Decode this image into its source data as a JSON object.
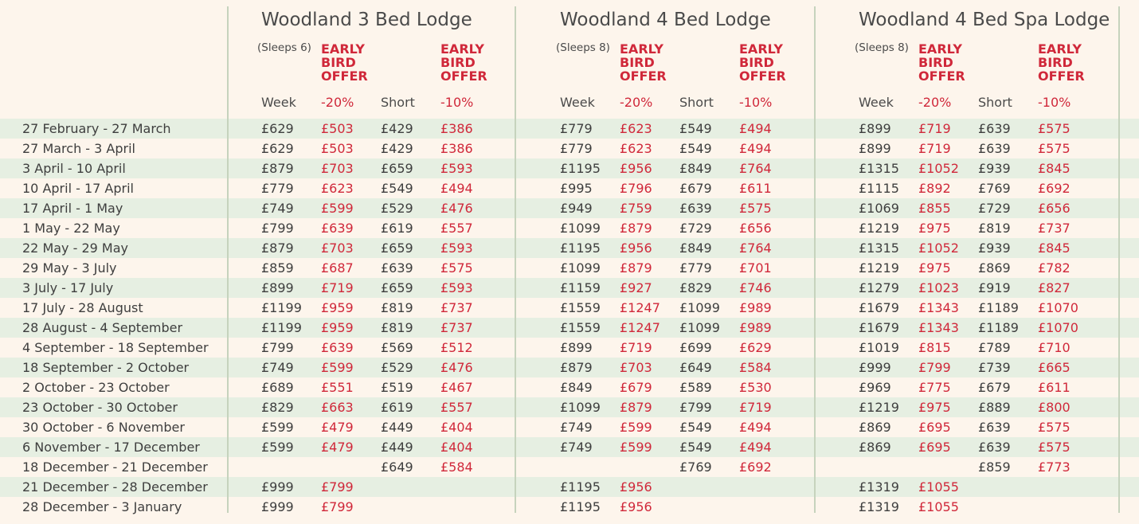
{
  "colors": {
    "background": "#fdf5ec",
    "stripe": "#e6efe2",
    "accent_red": "#d0283a",
    "divider": "#c6d3bd",
    "text": "#3e3e3e"
  },
  "lodges": [
    {
      "title": "Woodland 3 Bed Lodge",
      "sleeps": "(Sleeps 6)",
      "offer1": "EARLY\nBIRD\nOFFER",
      "offer2": "EARLY\nBIRD\nOFFER"
    },
    {
      "title": "Woodland 4 Bed Lodge",
      "sleeps": "(Sleeps 8)",
      "offer1": "EARLY\nBIRD\nOFFER",
      "offer2": "EARLY\nBIRD\nOFFER"
    },
    {
      "title": "Woodland 4 Bed Spa Lodge",
      "sleeps": "(Sleeps 8)",
      "offer1": "EARLY\nBIRD\nOFFER",
      "offer2": "EARLY\nBIRD\nOFFER"
    }
  ],
  "column_headers": [
    "Week",
    "-20%",
    "Short",
    "-10%"
  ],
  "rows": [
    {
      "date": "27 February - 27 March",
      "prices": [
        [
          "£629",
          "£503",
          "£429",
          "£386"
        ],
        [
          "£779",
          "£623",
          "£549",
          "£494"
        ],
        [
          "£899",
          "£719",
          "£639",
          "£575"
        ]
      ]
    },
    {
      "date": "27 March - 3 April",
      "prices": [
        [
          "£629",
          "£503",
          "£429",
          "£386"
        ],
        [
          "£779",
          "£623",
          "£549",
          "£494"
        ],
        [
          "£899",
          "£719",
          "£639",
          "£575"
        ]
      ]
    },
    {
      "date": "3 April - 10 April",
      "prices": [
        [
          "£879",
          "£703",
          "£659",
          "£593"
        ],
        [
          "£1195",
          "£956",
          "£849",
          "£764"
        ],
        [
          "£1315",
          "£1052",
          "£939",
          "£845"
        ]
      ]
    },
    {
      "date": "10 April - 17 April",
      "prices": [
        [
          "£779",
          "£623",
          "£549",
          "£494"
        ],
        [
          "£995",
          "£796",
          "£679",
          "£611"
        ],
        [
          "£1115",
          "£892",
          "£769",
          "£692"
        ]
      ]
    },
    {
      "date": "17 April - 1 May",
      "prices": [
        [
          "£749",
          "£599",
          "£529",
          "£476"
        ],
        [
          "£949",
          "£759",
          "£639",
          "£575"
        ],
        [
          "£1069",
          "£855",
          "£729",
          "£656"
        ]
      ]
    },
    {
      "date": "1 May - 22 May",
      "prices": [
        [
          "£799",
          "£639",
          "£619",
          "£557"
        ],
        [
          "£1099",
          "£879",
          "£729",
          "£656"
        ],
        [
          "£1219",
          "£975",
          "£819",
          "£737"
        ]
      ]
    },
    {
      "date": "22 May - 29 May",
      "prices": [
        [
          "£879",
          "£703",
          "£659",
          "£593"
        ],
        [
          "£1195",
          "£956",
          "£849",
          "£764"
        ],
        [
          "£1315",
          "£1052",
          "£939",
          "£845"
        ]
      ]
    },
    {
      "date": "29 May - 3 July",
      "prices": [
        [
          "£859",
          "£687",
          "£639",
          "£575"
        ],
        [
          "£1099",
          "£879",
          "£779",
          "£701"
        ],
        [
          "£1219",
          "£975",
          "£869",
          "£782"
        ]
      ]
    },
    {
      "date": "3 July - 17 July",
      "prices": [
        [
          "£899",
          "£719",
          "£659",
          "£593"
        ],
        [
          "£1159",
          "£927",
          "£829",
          "£746"
        ],
        [
          "£1279",
          "£1023",
          "£919",
          "£827"
        ]
      ]
    },
    {
      "date": "17 July - 28 August",
      "prices": [
        [
          "£1199",
          "£959",
          "£819",
          "£737"
        ],
        [
          "£1559",
          "£1247",
          "£1099",
          "£989"
        ],
        [
          "£1679",
          "£1343",
          "£1189",
          "£1070"
        ]
      ]
    },
    {
      "date": "28 August - 4 September",
      "prices": [
        [
          "£1199",
          "£959",
          "£819",
          "£737"
        ],
        [
          "£1559",
          "£1247",
          "£1099",
          "£989"
        ],
        [
          "£1679",
          "£1343",
          "£1189",
          "£1070"
        ]
      ]
    },
    {
      "date": "4 September - 18 September",
      "prices": [
        [
          "£799",
          "£639",
          "£569",
          "£512"
        ],
        [
          "£899",
          "£719",
          "£699",
          "£629"
        ],
        [
          "£1019",
          "£815",
          "£789",
          "£710"
        ]
      ]
    },
    {
      "date": "18 September - 2 October",
      "prices": [
        [
          "£749",
          "£599",
          "£529",
          "£476"
        ],
        [
          "£879",
          "£703",
          "£649",
          "£584"
        ],
        [
          "£999",
          "£799",
          "£739",
          "£665"
        ]
      ]
    },
    {
      "date": "2 October - 23 October",
      "prices": [
        [
          "£689",
          "£551",
          "£519",
          "£467"
        ],
        [
          "£849",
          "£679",
          "£589",
          "£530"
        ],
        [
          "£969",
          "£775",
          "£679",
          "£611"
        ]
      ]
    },
    {
      "date": "23 October - 30 October",
      "prices": [
        [
          "£829",
          "£663",
          "£619",
          "£557"
        ],
        [
          "£1099",
          "£879",
          "£799",
          "£719"
        ],
        [
          "£1219",
          "£975",
          "£889",
          "£800"
        ]
      ]
    },
    {
      "date": "30 October - 6 November",
      "prices": [
        [
          "£599",
          "£479",
          "£449",
          "£404"
        ],
        [
          "£749",
          "£599",
          "£549",
          "£494"
        ],
        [
          "£869",
          "£695",
          "£639",
          "£575"
        ]
      ]
    },
    {
      "date": "6 November - 17 December",
      "prices": [
        [
          "£599",
          "£479",
          "£449",
          "£404"
        ],
        [
          "£749",
          "£599",
          "£549",
          "£494"
        ],
        [
          "£869",
          "£695",
          "£639",
          "£575"
        ]
      ]
    },
    {
      "date": "18 December - 21 December",
      "prices": [
        [
          "",
          "",
          "£649",
          "£584"
        ],
        [
          "",
          "",
          "£769",
          "£692"
        ],
        [
          "",
          "",
          "£859",
          "£773"
        ]
      ]
    },
    {
      "date": "21 December - 28 December",
      "prices": [
        [
          "£999",
          "£799",
          "",
          ""
        ],
        [
          "£1195",
          "£956",
          "",
          ""
        ],
        [
          "£1319",
          "£1055",
          "",
          ""
        ]
      ]
    },
    {
      "date": "28 December - 3 January",
      "prices": [
        [
          "£999",
          "£799",
          "",
          ""
        ],
        [
          "£1195",
          "£956",
          "",
          ""
        ],
        [
          "£1319",
          "£1055",
          "",
          ""
        ]
      ]
    }
  ]
}
